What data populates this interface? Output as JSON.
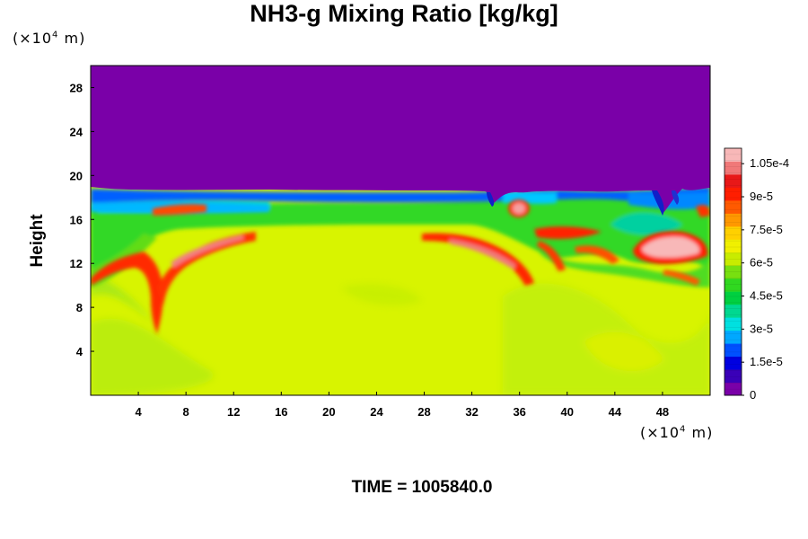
{
  "chart_data": {
    "type": "heatmap",
    "title": "NH3-g Mixing Ratio [kg/kg]",
    "ylabel": "Height",
    "xlabel": "",
    "x_unit": {
      "prefix": "(×10",
      "exp": "4",
      "suffix": " m)"
    },
    "y_unit": {
      "prefix": "(×10",
      "exp": "4",
      "suffix": " m)"
    },
    "xlim": [
      0,
      52
    ],
    "ylim": [
      0,
      30
    ],
    "x_ticks": [
      4,
      8,
      12,
      16,
      20,
      24,
      28,
      32,
      36,
      40,
      44,
      48
    ],
    "y_ticks": [
      4,
      8,
      12,
      16,
      20,
      24,
      28
    ],
    "colorbar": {
      "range": [
        0,
        0.000112
      ],
      "ticks": [
        {
          "value": 0,
          "label": "0"
        },
        {
          "value": 1.5e-05,
          "label": "1.5e-5"
        },
        {
          "value": 3e-05,
          "label": "3e-5"
        },
        {
          "value": 4.5e-05,
          "label": "4.5e-5"
        },
        {
          "value": 6e-05,
          "label": "6e-5"
        },
        {
          "value": 7.5e-05,
          "label": "7.5e-5"
        },
        {
          "value": 9e-05,
          "label": "9e-5"
        },
        {
          "value": 0.000105,
          "label": "1.05e-4"
        }
      ],
      "colors": [
        "#7a00a8",
        "#3a00b8",
        "#0000e0",
        "#0050ff",
        "#00a8ff",
        "#00e0e0",
        "#00d890",
        "#00d040",
        "#30d820",
        "#78e010",
        "#c8ec00",
        "#f0f000",
        "#ffd000",
        "#ff9800",
        "#ff5a00",
        "#ff1e00",
        "#e81818",
        "#f07878",
        "#f8b8b8"
      ]
    },
    "fields": {
      "upper_value": 0,
      "background_value": 7.6e-05,
      "band_value": 6.2e-05,
      "band_y_range": [
        15.5,
        17.5
      ],
      "top_edge_y": 19,
      "high_regions": [
        {
          "x": 7.5,
          "y": 11,
          "value": 0.0001
        },
        {
          "x": 11.5,
          "y": 13.8,
          "value": 0.0001
        },
        {
          "x": 33,
          "y": 12.5,
          "value": 0.000102
        },
        {
          "x": 35,
          "y": 17,
          "value": 0.00011
        },
        {
          "x": 40,
          "y": 14.5,
          "value": 0.000105
        },
        {
          "x": 48,
          "y": 14,
          "value": 0.000112
        }
      ]
    }
  },
  "time_label": "TIME = 1005840.0"
}
